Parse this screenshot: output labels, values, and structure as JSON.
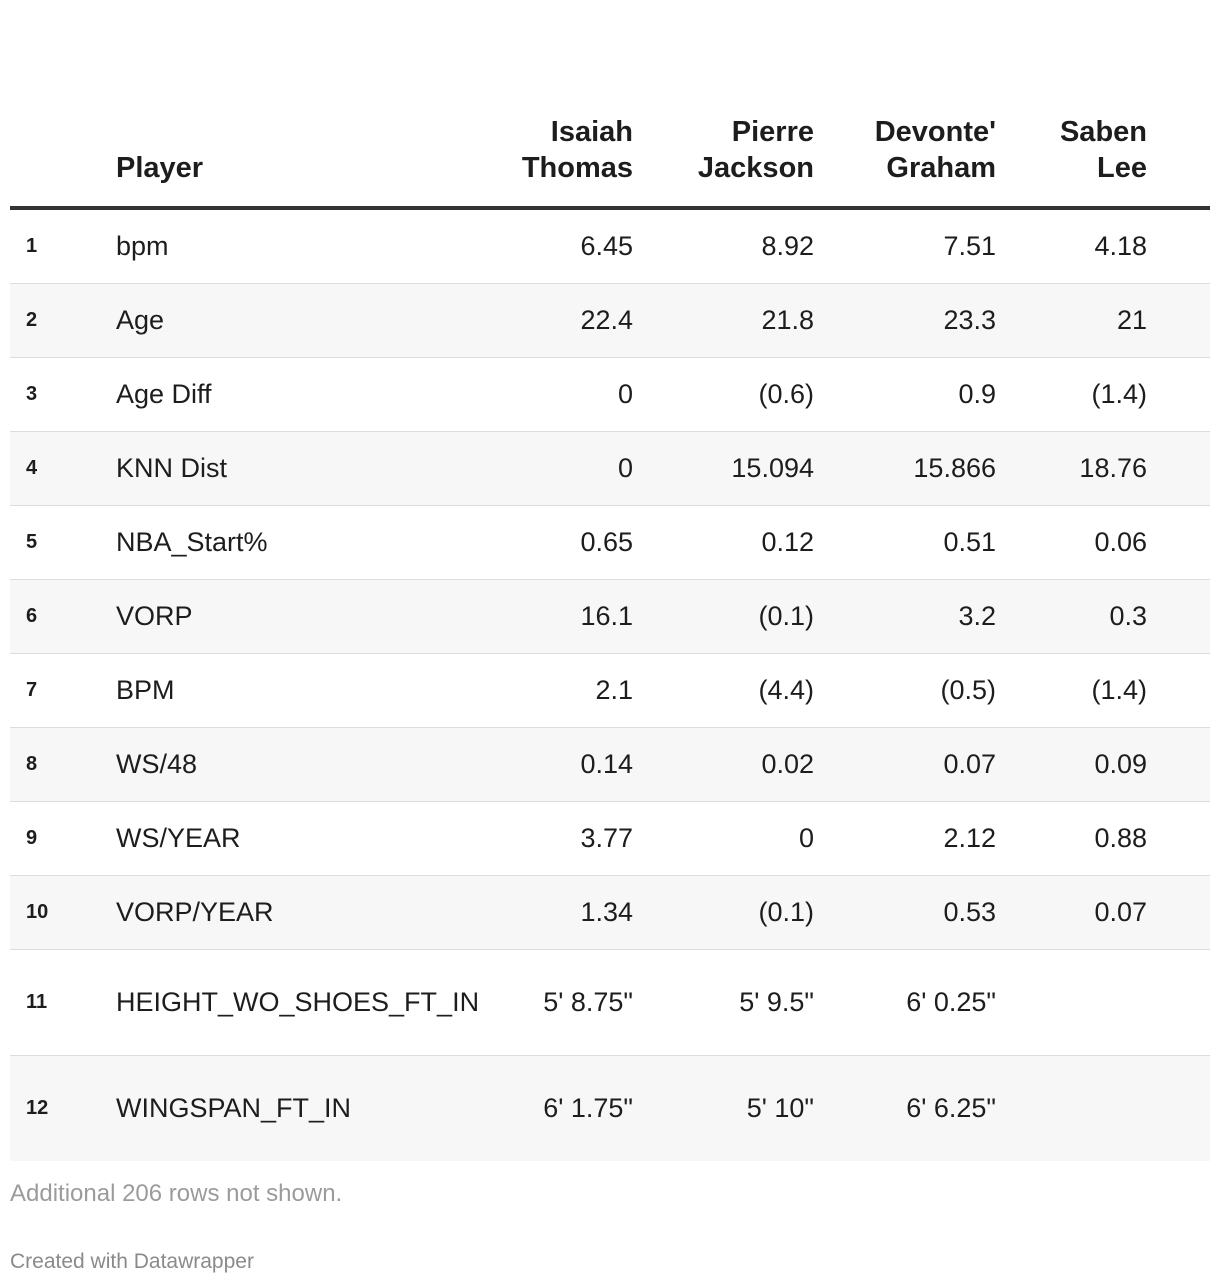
{
  "chart_data": {
    "type": "table",
    "columns": [
      "",
      "Player",
      "Isaiah Thomas",
      "Pierre Jackson",
      "Devonte' Graham",
      "Saben Lee"
    ],
    "header": {
      "player": "Player",
      "c1": [
        "Isaiah",
        "Thomas"
      ],
      "c2": [
        "Pierre",
        "Jackson"
      ],
      "c3": [
        "Devonte'",
        "Graham"
      ],
      "c4": [
        "Saben",
        "Lee"
      ]
    },
    "rows": [
      {
        "idx": "1",
        "name": "bpm",
        "c1": "6.45",
        "c2": "8.92",
        "c3": "7.51",
        "c4": "4.18"
      },
      {
        "idx": "2",
        "name": "Age",
        "c1": "22.4",
        "c2": "21.8",
        "c3": "23.3",
        "c4": "21"
      },
      {
        "idx": "3",
        "name": "Age Diff",
        "c1": "0",
        "c2": "(0.6)",
        "c3": "0.9",
        "c4": "(1.4)"
      },
      {
        "idx": "4",
        "name": "KNN Dist",
        "c1": "0",
        "c2": "15.094",
        "c3": "15.866",
        "c4": "18.76"
      },
      {
        "idx": "5",
        "name": "NBA_Start%",
        "c1": "0.65",
        "c2": "0.12",
        "c3": "0.51",
        "c4": "0.06"
      },
      {
        "idx": "6",
        "name": "VORP",
        "c1": "16.1",
        "c2": "(0.1)",
        "c3": "3.2",
        "c4": "0.3"
      },
      {
        "idx": "7",
        "name": "BPM",
        "c1": "2.1",
        "c2": "(4.4)",
        "c3": "(0.5)",
        "c4": "(1.4)"
      },
      {
        "idx": "8",
        "name": "WS/48",
        "c1": "0.14",
        "c2": "0.02",
        "c3": "0.07",
        "c4": "0.09"
      },
      {
        "idx": "9",
        "name": "WS/YEAR",
        "c1": "3.77",
        "c2": "0",
        "c3": "2.12",
        "c4": "0.88"
      },
      {
        "idx": "10",
        "name": "VORP/YEAR",
        "c1": "1.34",
        "c2": "(0.1)",
        "c3": "0.53",
        "c4": "0.07"
      },
      {
        "idx": "11",
        "name": "HEIGHT_WO_SHOES_FT_IN",
        "c1": "5' 8.75\"",
        "c2": "5' 9.5\"",
        "c3": "6' 0.25\"",
        "c4": ""
      },
      {
        "idx": "12",
        "name": "WINGSPAN_FT_IN",
        "c1": "6' 1.75\"",
        "c2": "5' 10\"",
        "c3": "6' 6.25\"",
        "c4": ""
      }
    ]
  },
  "notes": "Additional 206 rows not shown.",
  "credit": "Created with Datawrapper"
}
